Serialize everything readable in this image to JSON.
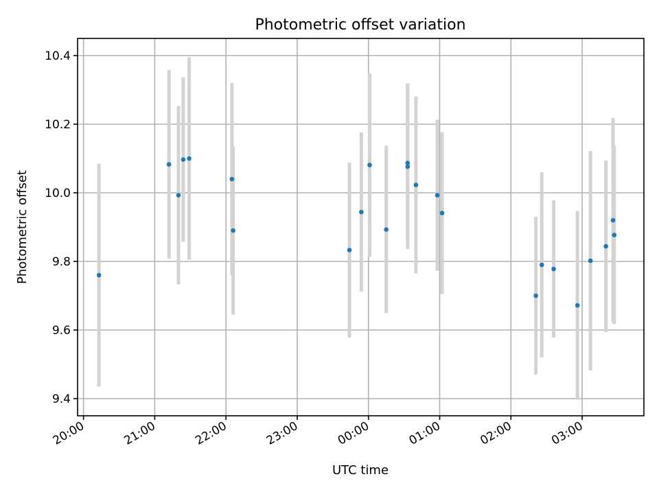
{
  "chart_data": {
    "type": "scatter",
    "title": "Photometric offset variation",
    "xlabel": "UTC time",
    "ylabel": "Photometric offset",
    "x_is_time": true,
    "xlim": [
      "19:55",
      "03:52"
    ],
    "ylim": [
      9.35,
      10.45
    ],
    "x_ticks": [
      "20:00",
      "21:00",
      "22:00",
      "23:00",
      "00:00",
      "01:00",
      "02:00",
      "03:00"
    ],
    "y_ticks": [
      "9.4",
      "9.6",
      "9.8",
      "10.0",
      "10.2",
      "10.4"
    ],
    "grid": true,
    "point_color": "#1f77b4",
    "errorbar_color": "#d3d3d3",
    "points": [
      {
        "x": "20:13",
        "y": 9.76,
        "yerr": 0.325
      },
      {
        "x": "21:12",
        "y": 10.083,
        "yerr": 0.275
      },
      {
        "x": "21:20",
        "y": 9.993,
        "yerr": 0.26
      },
      {
        "x": "21:24",
        "y": 10.097,
        "yerr": 0.24
      },
      {
        "x": "21:29",
        "y": 10.1,
        "yerr": 0.295
      },
      {
        "x": "22:05",
        "y": 10.04,
        "yerr": 0.28
      },
      {
        "x": "22:06",
        "y": 9.89,
        "yerr": 0.245
      },
      {
        "x": "23:44",
        "y": 9.833,
        "yerr": 0.255
      },
      {
        "x": "23:54",
        "y": 9.944,
        "yerr": 0.232
      },
      {
        "x": "00:01",
        "y": 10.081,
        "yerr": 0.268
      },
      {
        "x": "00:15",
        "y": 9.893,
        "yerr": 0.244
      },
      {
        "x": "00:33",
        "y": 10.087,
        "yerr": 0.232
      },
      {
        "x": "00:33",
        "y": 10.076,
        "yerr": 0.24
      },
      {
        "x": "00:40",
        "y": 10.023,
        "yerr": 0.258
      },
      {
        "x": "00:58",
        "y": 9.993,
        "yerr": 0.22
      },
      {
        "x": "01:02",
        "y": 9.941,
        "yerr": 0.236
      },
      {
        "x": "02:21",
        "y": 9.7,
        "yerr": 0.23
      },
      {
        "x": "02:26",
        "y": 9.79,
        "yerr": 0.27
      },
      {
        "x": "02:36",
        "y": 9.778,
        "yerr": 0.2
      },
      {
        "x": "02:56",
        "y": 9.672,
        "yerr": 0.275
      },
      {
        "x": "03:07",
        "y": 9.802,
        "yerr": 0.32
      },
      {
        "x": "03:20",
        "y": 9.844,
        "yerr": 0.25
      },
      {
        "x": "03:26",
        "y": 9.92,
        "yerr": 0.298
      },
      {
        "x": "03:27",
        "y": 9.877,
        "yerr": 0.26
      }
    ]
  }
}
